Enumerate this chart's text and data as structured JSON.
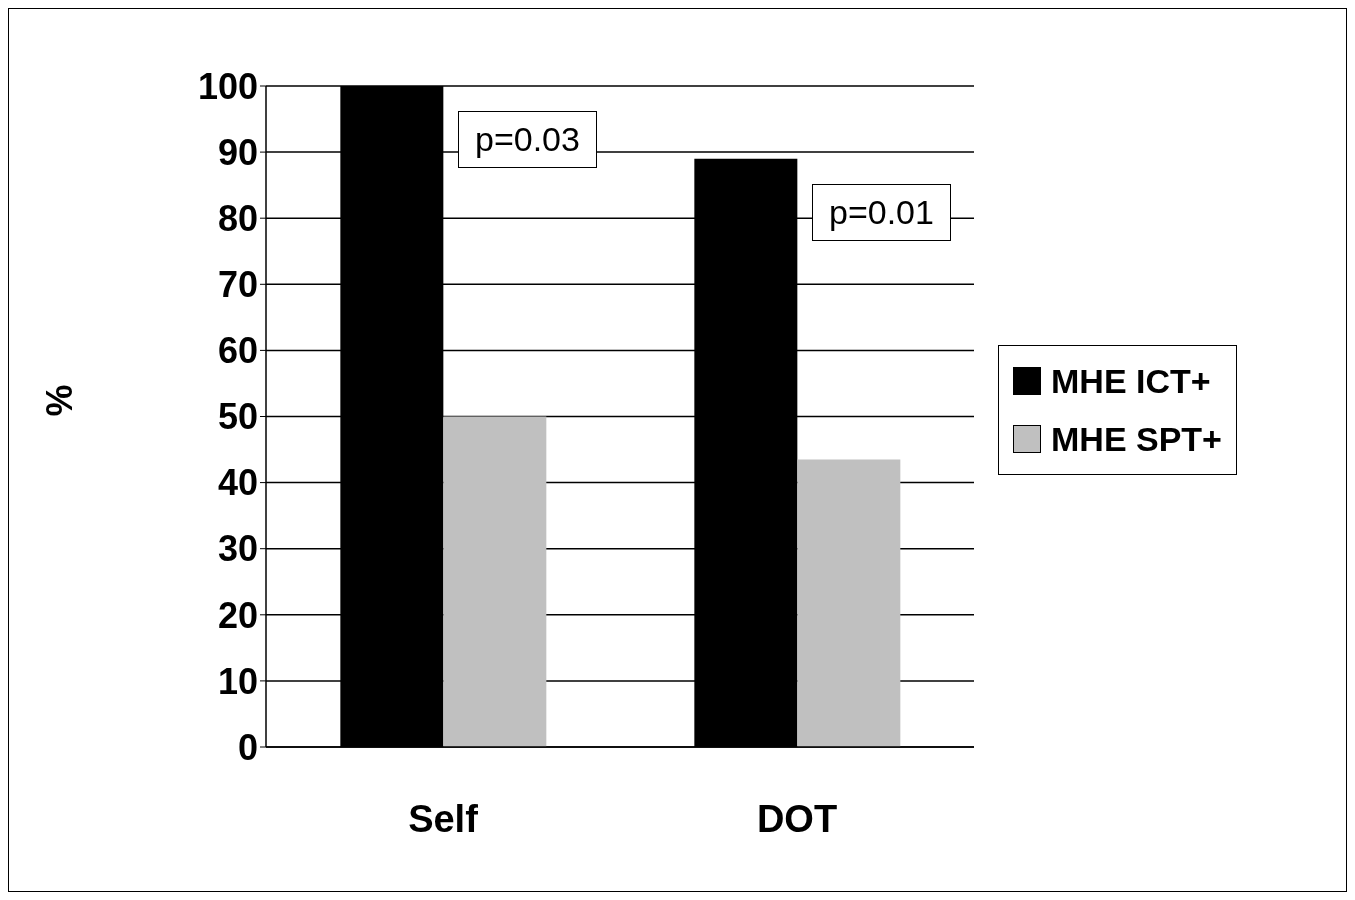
{
  "chart_data": {
    "type": "bar",
    "categories": [
      "Self",
      "DOT"
    ],
    "ylabel": "%",
    "series": [
      {
        "name": "MHE ICT+",
        "color": "#000000",
        "values": [
          100,
          89
        ]
      },
      {
        "name": "MHE SPT+",
        "color": "#c0c0c0",
        "values": [
          50,
          43.5
        ]
      }
    ],
    "ylim": [
      0,
      100
    ],
    "yticks": [
      0,
      10,
      20,
      30,
      40,
      50,
      60,
      70,
      80,
      90,
      100
    ],
    "grid": "y",
    "legend": "right",
    "annotations": [
      "p=0.03",
      "p=0.01"
    ]
  }
}
